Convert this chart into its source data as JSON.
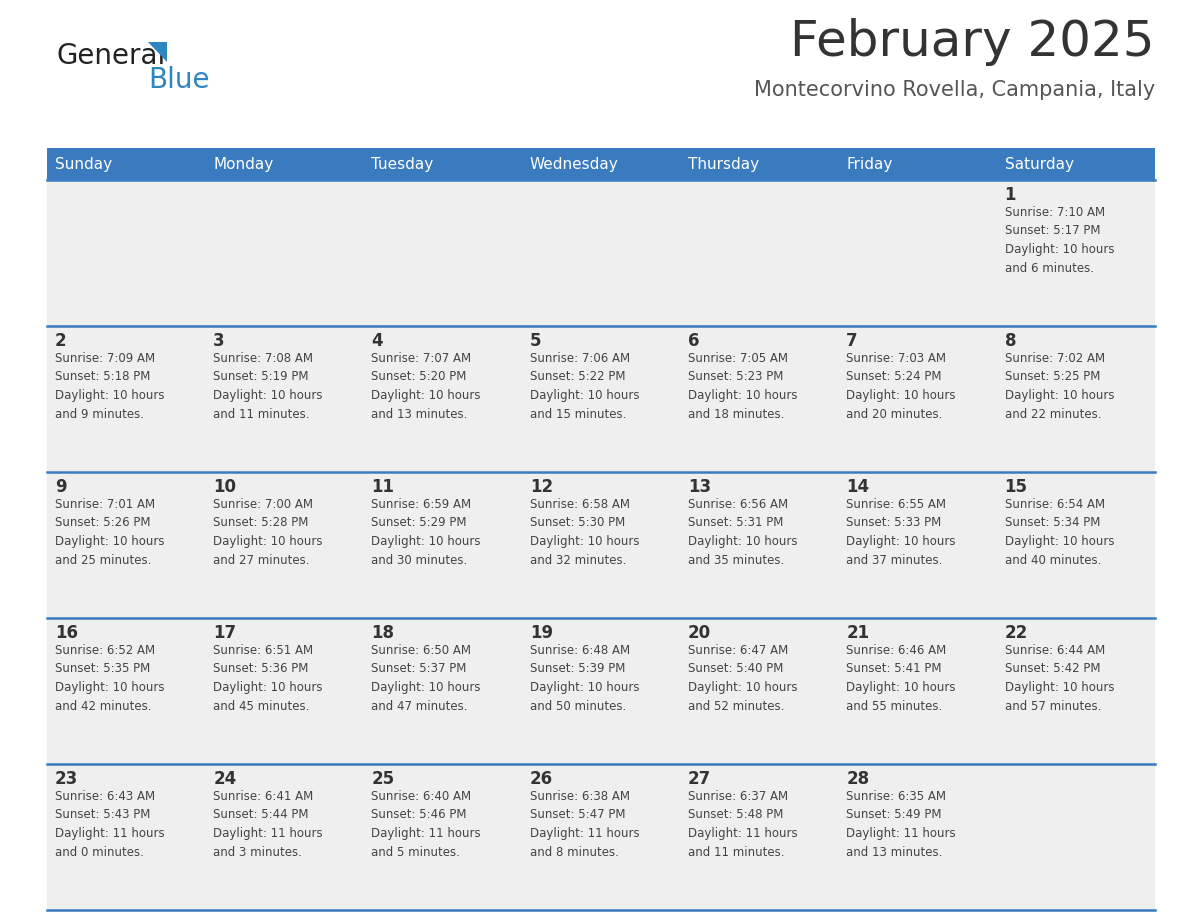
{
  "title": "February 2025",
  "subtitle": "Montecorvino Rovella, Campania, Italy",
  "header_color": "#3a7abf",
  "header_text_color": "#ffffff",
  "cell_bg": "#efefef",
  "day_text_color": "#333333",
  "info_text_color": "#444444",
  "line_color": "#3a7abf",
  "days_of_week": [
    "Sunday",
    "Monday",
    "Tuesday",
    "Wednesday",
    "Thursday",
    "Friday",
    "Saturday"
  ],
  "weeks": [
    [
      {
        "day": "",
        "info": ""
      },
      {
        "day": "",
        "info": ""
      },
      {
        "day": "",
        "info": ""
      },
      {
        "day": "",
        "info": ""
      },
      {
        "day": "",
        "info": ""
      },
      {
        "day": "",
        "info": ""
      },
      {
        "day": "1",
        "info": "Sunrise: 7:10 AM\nSunset: 5:17 PM\nDaylight: 10 hours\nand 6 minutes."
      }
    ],
    [
      {
        "day": "2",
        "info": "Sunrise: 7:09 AM\nSunset: 5:18 PM\nDaylight: 10 hours\nand 9 minutes."
      },
      {
        "day": "3",
        "info": "Sunrise: 7:08 AM\nSunset: 5:19 PM\nDaylight: 10 hours\nand 11 minutes."
      },
      {
        "day": "4",
        "info": "Sunrise: 7:07 AM\nSunset: 5:20 PM\nDaylight: 10 hours\nand 13 minutes."
      },
      {
        "day": "5",
        "info": "Sunrise: 7:06 AM\nSunset: 5:22 PM\nDaylight: 10 hours\nand 15 minutes."
      },
      {
        "day": "6",
        "info": "Sunrise: 7:05 AM\nSunset: 5:23 PM\nDaylight: 10 hours\nand 18 minutes."
      },
      {
        "day": "7",
        "info": "Sunrise: 7:03 AM\nSunset: 5:24 PM\nDaylight: 10 hours\nand 20 minutes."
      },
      {
        "day": "8",
        "info": "Sunrise: 7:02 AM\nSunset: 5:25 PM\nDaylight: 10 hours\nand 22 minutes."
      }
    ],
    [
      {
        "day": "9",
        "info": "Sunrise: 7:01 AM\nSunset: 5:26 PM\nDaylight: 10 hours\nand 25 minutes."
      },
      {
        "day": "10",
        "info": "Sunrise: 7:00 AM\nSunset: 5:28 PM\nDaylight: 10 hours\nand 27 minutes."
      },
      {
        "day": "11",
        "info": "Sunrise: 6:59 AM\nSunset: 5:29 PM\nDaylight: 10 hours\nand 30 minutes."
      },
      {
        "day": "12",
        "info": "Sunrise: 6:58 AM\nSunset: 5:30 PM\nDaylight: 10 hours\nand 32 minutes."
      },
      {
        "day": "13",
        "info": "Sunrise: 6:56 AM\nSunset: 5:31 PM\nDaylight: 10 hours\nand 35 minutes."
      },
      {
        "day": "14",
        "info": "Sunrise: 6:55 AM\nSunset: 5:33 PM\nDaylight: 10 hours\nand 37 minutes."
      },
      {
        "day": "15",
        "info": "Sunrise: 6:54 AM\nSunset: 5:34 PM\nDaylight: 10 hours\nand 40 minutes."
      }
    ],
    [
      {
        "day": "16",
        "info": "Sunrise: 6:52 AM\nSunset: 5:35 PM\nDaylight: 10 hours\nand 42 minutes."
      },
      {
        "day": "17",
        "info": "Sunrise: 6:51 AM\nSunset: 5:36 PM\nDaylight: 10 hours\nand 45 minutes."
      },
      {
        "day": "18",
        "info": "Sunrise: 6:50 AM\nSunset: 5:37 PM\nDaylight: 10 hours\nand 47 minutes."
      },
      {
        "day": "19",
        "info": "Sunrise: 6:48 AM\nSunset: 5:39 PM\nDaylight: 10 hours\nand 50 minutes."
      },
      {
        "day": "20",
        "info": "Sunrise: 6:47 AM\nSunset: 5:40 PM\nDaylight: 10 hours\nand 52 minutes."
      },
      {
        "day": "21",
        "info": "Sunrise: 6:46 AM\nSunset: 5:41 PM\nDaylight: 10 hours\nand 55 minutes."
      },
      {
        "day": "22",
        "info": "Sunrise: 6:44 AM\nSunset: 5:42 PM\nDaylight: 10 hours\nand 57 minutes."
      }
    ],
    [
      {
        "day": "23",
        "info": "Sunrise: 6:43 AM\nSunset: 5:43 PM\nDaylight: 11 hours\nand 0 minutes."
      },
      {
        "day": "24",
        "info": "Sunrise: 6:41 AM\nSunset: 5:44 PM\nDaylight: 11 hours\nand 3 minutes."
      },
      {
        "day": "25",
        "info": "Sunrise: 6:40 AM\nSunset: 5:46 PM\nDaylight: 11 hours\nand 5 minutes."
      },
      {
        "day": "26",
        "info": "Sunrise: 6:38 AM\nSunset: 5:47 PM\nDaylight: 11 hours\nand 8 minutes."
      },
      {
        "day": "27",
        "info": "Sunrise: 6:37 AM\nSunset: 5:48 PM\nDaylight: 11 hours\nand 11 minutes."
      },
      {
        "day": "28",
        "info": "Sunrise: 6:35 AM\nSunset: 5:49 PM\nDaylight: 11 hours\nand 13 minutes."
      },
      {
        "day": "",
        "info": ""
      }
    ]
  ],
  "logo_general_color": "#222222",
  "logo_blue_color": "#2e86c1",
  "logo_triangle_color": "#2e86c1",
  "title_color": "#333333",
  "subtitle_color": "#555555",
  "title_fontsize": 36,
  "subtitle_fontsize": 15,
  "header_fontsize": 11,
  "day_num_fontsize": 12,
  "info_fontsize": 8.5
}
